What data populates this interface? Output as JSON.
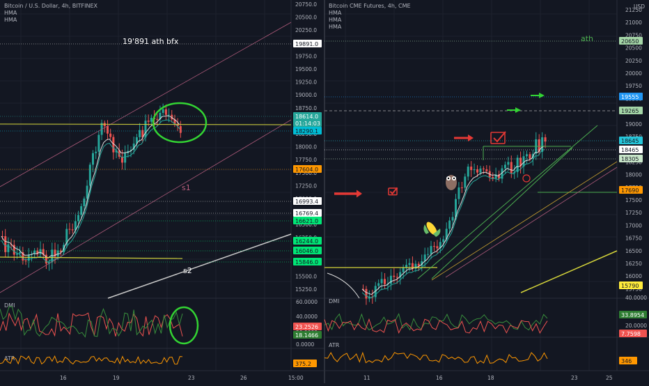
{
  "left": {
    "title": "Bitcoin / U.S. Dollar, 4h, BITFINEX",
    "indicators": [
      "HMA",
      "HMA"
    ],
    "annotation_ath": "19'891 ath bfx",
    "label_s1": "s1",
    "label_s2": "s2",
    "price_axis": [
      "20750.0",
      "20500.0",
      "20250.0",
      "20000.0",
      "19750.0",
      "19500.0",
      "19250.0",
      "19000.0",
      "18750.0",
      "18500.0",
      "18250.0",
      "18000.0",
      "17750.0",
      "17500.0",
      "17250.0",
      "17000.0",
      "16750.0",
      "16500.0",
      "16250.0",
      "16000.0",
      "15750.0",
      "15500.0",
      "15250.0"
    ],
    "price_tags": [
      {
        "text": "19891.0",
        "bg": "#ffffff",
        "fg": "#131722"
      },
      {
        "text": "18614.0",
        "bg": "#26a69a",
        "fg": "#ffffff"
      },
      {
        "text": "01:14:03",
        "bg": "#26a69a",
        "fg": "#ffffff"
      },
      {
        "text": "18290.1",
        "bg": "#00bcd4",
        "fg": "#131722"
      },
      {
        "text": "17604.0",
        "bg": "#ff9800",
        "fg": "#131722"
      },
      {
        "text": "16993.4",
        "bg": "#ffffff",
        "fg": "#131722"
      },
      {
        "text": "16769.4",
        "bg": "#ffffff",
        "fg": "#131722"
      },
      {
        "text": "16621.0",
        "bg": "#00e676",
        "fg": "#131722"
      },
      {
        "text": "16244.0",
        "bg": "#00e676",
        "fg": "#131722"
      },
      {
        "text": "16046.0",
        "bg": "#00e676",
        "fg": "#131722"
      },
      {
        "text": "15846.0",
        "bg": "#00e676",
        "fg": "#131722"
      }
    ],
    "dmi": {
      "label": "DMI",
      "axis": [
        "60.0000",
        "40.0000",
        "20.0000",
        "0.0000"
      ],
      "tags": [
        {
          "text": "23.2526",
          "bg": "#ef5350",
          "fg": "#ffffff"
        },
        {
          "text": "18.1466",
          "bg": "#2e7d32",
          "fg": "#ffffff"
        }
      ]
    },
    "atr": {
      "label": "ATR",
      "tag": "375.2",
      "tag_bg": "#ff9800"
    },
    "time_axis": [
      "16",
      "19",
      "23",
      "26",
      "15:00"
    ]
  },
  "right": {
    "title": "Bitcoin CME Futures, 4h, CME",
    "indicators": [
      "HMA",
      "HMA",
      "HMA"
    ],
    "currency": "USD",
    "annotation_ath": "ath",
    "price_axis": [
      "21250",
      "21000",
      "20750",
      "20500",
      "20250",
      "20000",
      "19750",
      "19500",
      "19250",
      "19000",
      "18750",
      "18500",
      "18250",
      "18000",
      "17750",
      "17500",
      "17250",
      "17000",
      "16750",
      "16500",
      "16250",
      "16000",
      "15750"
    ],
    "price_tags": [
      {
        "text": "20650",
        "bg": "#a5d6a7",
        "fg": "#131722"
      },
      {
        "text": "19555",
        "bg": "#2196f3",
        "fg": "#ffffff"
      },
      {
        "text": "19265",
        "bg": "#a5d6a7",
        "fg": "#131722"
      },
      {
        "text": "18645",
        "bg": "#26c6da",
        "fg": "#131722"
      },
      {
        "text": "18465",
        "bg": "#ffffff",
        "fg": "#131722"
      },
      {
        "text": "18305",
        "bg": "#c8e6c9",
        "fg": "#131722"
      },
      {
        "text": "17690",
        "bg": "#ff9800",
        "fg": "#131722"
      },
      {
        "text": "15790",
        "bg": "#ffeb3b",
        "fg": "#131722"
      }
    ],
    "dmi": {
      "label": "DMI",
      "axis": [
        "40.0000",
        "20.0000"
      ],
      "tags": [
        {
          "text": "33.8954",
          "bg": "#2e7d32",
          "fg": "#ffffff"
        },
        {
          "text": "7.7598",
          "bg": "#ef5350",
          "fg": "#ffffff"
        }
      ]
    },
    "atr": {
      "label": "ATR",
      "tag": "346",
      "tag_bg": "#ff9800"
    },
    "time_axis": [
      "11",
      "16",
      "18",
      "23",
      "25"
    ]
  },
  "colors": {
    "background": "#131722",
    "grid": "#1e222d",
    "up": "#26a69a",
    "down": "#ef5350",
    "annotation_green": "#4caf50",
    "yellow": "#d4d43a"
  }
}
